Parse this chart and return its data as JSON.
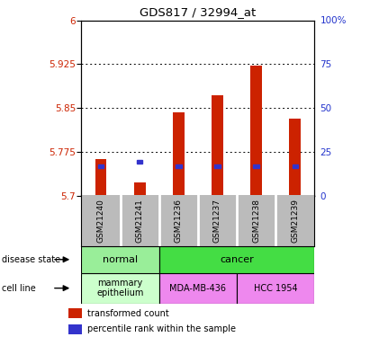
{
  "title": "GDS817 / 32994_at",
  "samples": [
    "GSM21240",
    "GSM21241",
    "GSM21236",
    "GSM21237",
    "GSM21238",
    "GSM21239"
  ],
  "bar_values": [
    5.762,
    5.722,
    5.842,
    5.872,
    5.922,
    5.832
  ],
  "blue_values": [
    5.75,
    5.758,
    5.75,
    5.75,
    5.75,
    5.75
  ],
  "ymin": 5.7,
  "ymax": 6.0,
  "yticks": [
    5.7,
    5.775,
    5.85,
    5.925,
    6.0
  ],
  "ytick_labels": [
    "5.7",
    "5.775",
    "5.85",
    "5.925",
    "6"
  ],
  "y2min": 0,
  "y2max": 100,
  "y2ticks": [
    0,
    25,
    50,
    75,
    100
  ],
  "y2tick_labels": [
    "0",
    "25",
    "50",
    "75",
    "100%"
  ],
  "bar_color": "#cc2200",
  "blue_color": "#3333cc",
  "bar_bottom": 5.7,
  "ds_colors": [
    "#99ee99",
    "#44dd44"
  ],
  "cl_colors": [
    "#ccffcc",
    "#ee88ee"
  ],
  "sample_bg": "#bbbbbb",
  "plot_bg": "#ffffff"
}
